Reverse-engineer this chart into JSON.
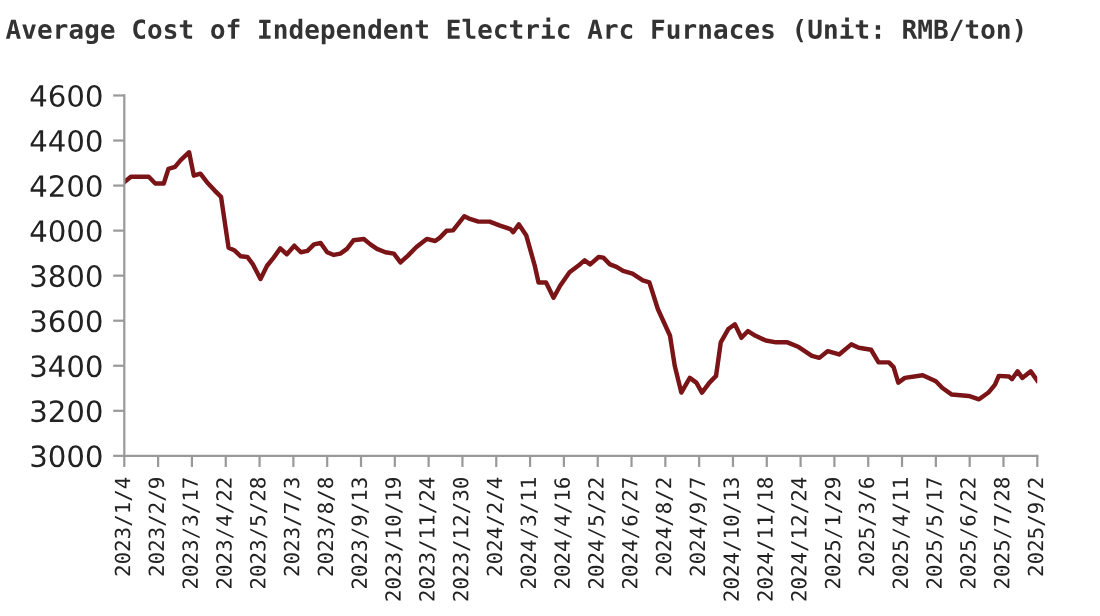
{
  "chart_data": {
    "type": "line",
    "title": "Average Cost of Independent Electric Arc Furnaces (Unit: RMB/ton)",
    "x": [
      "2023-01-04",
      "2023-01-11",
      "2023-01-30",
      "2023-02-06",
      "2023-02-15",
      "2023-02-20",
      "2023-02-27",
      "2023-03-05",
      "2023-03-14",
      "2023-03-19",
      "2023-03-26",
      "2023-04-02",
      "2023-04-10",
      "2023-04-17",
      "2023-04-25",
      "2023-05-01",
      "2023-05-08",
      "2023-05-15",
      "2023-05-21",
      "2023-05-29",
      "2023-06-05",
      "2023-06-12",
      "2023-06-19",
      "2023-06-26",
      "2023-07-04",
      "2023-07-11",
      "2023-07-18",
      "2023-07-25",
      "2023-08-01",
      "2023-08-08",
      "2023-08-15",
      "2023-08-22",
      "2023-08-29",
      "2023-09-05",
      "2023-09-16",
      "2023-09-23",
      "2023-09-30",
      "2023-10-09",
      "2023-10-18",
      "2023-10-25",
      "2023-11-02",
      "2023-11-11",
      "2023-11-22",
      "2023-12-01",
      "2023-12-06",
      "2023-12-13",
      "2023-12-20",
      "2024-01-01",
      "2024-01-07",
      "2024-01-16",
      "2024-01-28",
      "2024-02-08",
      "2024-02-19",
      "2024-02-22",
      "2024-02-28",
      "2024-03-07",
      "2024-03-16",
      "2024-03-20",
      "2024-03-28",
      "2024-04-05",
      "2024-04-12",
      "2024-04-22",
      "2024-05-03",
      "2024-05-08",
      "2024-05-14",
      "2024-05-23",
      "2024-05-28",
      "2024-06-04",
      "2024-06-11",
      "2024-06-18",
      "2024-06-28",
      "2024-07-09",
      "2024-07-16",
      "2024-07-25",
      "2024-08-07",
      "2024-08-12",
      "2024-08-19",
      "2024-08-28",
      "2024-09-04",
      "2024-09-10",
      "2024-09-18",
      "2024-09-25",
      "2024-09-30",
      "2024-10-08",
      "2024-10-15",
      "2024-10-22",
      "2024-10-29",
      "2024-11-06",
      "2024-11-17",
      "2024-11-28",
      "2024-12-10",
      "2024-12-22",
      "2025-01-05",
      "2025-01-13",
      "2025-01-22",
      "2025-02-03",
      "2025-02-16",
      "2025-02-24",
      "2025-03-09",
      "2025-03-17",
      "2025-03-28",
      "2025-04-02",
      "2025-04-07",
      "2025-04-14",
      "2025-05-03",
      "2025-05-17",
      "2025-05-24",
      "2025-06-03",
      "2025-06-21",
      "2025-07-02",
      "2025-07-12",
      "2025-07-19",
      "2025-07-23",
      "2025-08-03",
      "2025-08-06",
      "2025-08-12",
      "2025-08-17",
      "2025-08-26",
      "2025-09-02"
    ],
    "series": [
      {
        "color": "#7b1416",
        "values": [
          4215,
          4239,
          4239,
          4209,
          4209,
          4274,
          4283,
          4313,
          4348,
          4244,
          4253,
          4215,
          4179,
          4150,
          3924,
          3913,
          3886,
          3883,
          3850,
          3785,
          3844,
          3880,
          3921,
          3895,
          3933,
          3904,
          3910,
          3939,
          3945,
          3904,
          3892,
          3898,
          3919,
          3957,
          3963,
          3939,
          3919,
          3904,
          3898,
          3859,
          3889,
          3927,
          3963,
          3954,
          3969,
          3999,
          4001,
          4064,
          4052,
          4040,
          4040,
          4022,
          4007,
          3993,
          4028,
          3978,
          3844,
          3770,
          3770,
          3702,
          3755,
          3815,
          3850,
          3868,
          3850,
          3883,
          3880,
          3850,
          3839,
          3821,
          3809,
          3779,
          3770,
          3652,
          3533,
          3400,
          3281,
          3346,
          3325,
          3281,
          3325,
          3355,
          3504,
          3563,
          3584,
          3524,
          3554,
          3533,
          3512,
          3504,
          3504,
          3483,
          3444,
          3435,
          3465,
          3450,
          3495,
          3480,
          3471,
          3415,
          3415,
          3394,
          3325,
          3346,
          3358,
          3331,
          3301,
          3272,
          3266,
          3251,
          3281,
          3316,
          3355,
          3352,
          3340,
          3375,
          3346,
          3375,
          3334
        ]
      }
    ],
    "xlim": [
      "2023-01-04",
      "2025-09-02"
    ],
    "xticks": [
      {
        "value": "2023-01-04",
        "label": "2023/1/4"
      },
      {
        "value": "2023-02-09",
        "label": "2023/2/9"
      },
      {
        "value": "2023-03-17",
        "label": "2023/3/17"
      },
      {
        "value": "2023-04-22",
        "label": "2023/4/22"
      },
      {
        "value": "2023-05-28",
        "label": "2023/5/28"
      },
      {
        "value": "2023-07-03",
        "label": "2023/7/3"
      },
      {
        "value": "2023-08-08",
        "label": "2023/8/8"
      },
      {
        "value": "2023-09-13",
        "label": "2023/9/13"
      },
      {
        "value": "2023-10-19",
        "label": "2023/10/19"
      },
      {
        "value": "2023-11-24",
        "label": "2023/11/24"
      },
      {
        "value": "2023-12-30",
        "label": "2023/12/30"
      },
      {
        "value": "2024-02-04",
        "label": "2024/2/4"
      },
      {
        "value": "2024-03-11",
        "label": "2024/3/11"
      },
      {
        "value": "2024-04-16",
        "label": "2024/4/16"
      },
      {
        "value": "2024-05-22",
        "label": "2024/5/22"
      },
      {
        "value": "2024-06-27",
        "label": "2024/6/27"
      },
      {
        "value": "2024-08-02",
        "label": "2024/8/2"
      },
      {
        "value": "2024-09-07",
        "label": "2024/9/7"
      },
      {
        "value": "2024-10-13",
        "label": "2024/10/13"
      },
      {
        "value": "2024-11-18",
        "label": "2024/11/18"
      },
      {
        "value": "2024-12-24",
        "label": "2024/12/24"
      },
      {
        "value": "2025-01-29",
        "label": "2025/1/29"
      },
      {
        "value": "2025-03-06",
        "label": "2025/3/6"
      },
      {
        "value": "2025-04-11",
        "label": "2025/4/11"
      },
      {
        "value": "2025-05-17",
        "label": "2025/5/17"
      },
      {
        "value": "2025-06-22",
        "label": "2025/6/22"
      },
      {
        "value": "2025-07-28",
        "label": "2025/7/28"
      },
      {
        "value": "2025-09-02",
        "label": "2025/9/2"
      }
    ],
    "ylim": [
      3000,
      4600
    ],
    "yticks": [
      3000,
      3200,
      3400,
      3600,
      3800,
      4000,
      4200,
      4400,
      4600
    ],
    "marker": "none",
    "line_style": "solid"
  }
}
